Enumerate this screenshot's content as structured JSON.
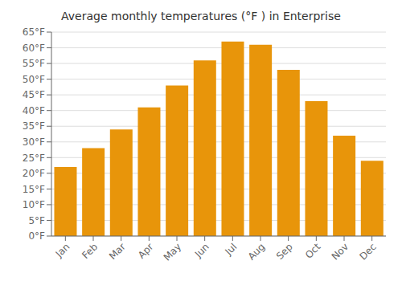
{
  "chart_data": {
    "type": "bar",
    "title": "Average monthly temperatures (°F ) in Enterprise",
    "categories": [
      "Jan",
      "Feb",
      "Mar",
      "Apr",
      "May",
      "Jun",
      "Jul",
      "Aug",
      "Sep",
      "Oct",
      "Nov",
      "Dec"
    ],
    "values": [
      22,
      28,
      34,
      41,
      48,
      56,
      62,
      61,
      53,
      43,
      32,
      24
    ],
    "color": "#E8950A",
    "ylim": [
      0,
      65
    ],
    "yticks": [
      {
        "value": 0,
        "label": "0°F"
      },
      {
        "value": 5,
        "label": "5°F"
      },
      {
        "value": 10,
        "label": "10°F"
      },
      {
        "value": 15,
        "label": "15°F"
      },
      {
        "value": 20,
        "label": "20°F"
      },
      {
        "value": 25,
        "label": "25°F"
      },
      {
        "value": 30,
        "label": "30°F"
      },
      {
        "value": 35,
        "label": "35°F"
      },
      {
        "value": 40,
        "label": "40°F"
      },
      {
        "value": 45,
        "label": "45°F"
      },
      {
        "value": 50,
        "label": "50°F"
      },
      {
        "value": 55,
        "label": "55°F"
      },
      {
        "value": 60,
        "label": "60°F"
      },
      {
        "value": 65,
        "label": "65°F"
      }
    ],
    "grid": true
  }
}
